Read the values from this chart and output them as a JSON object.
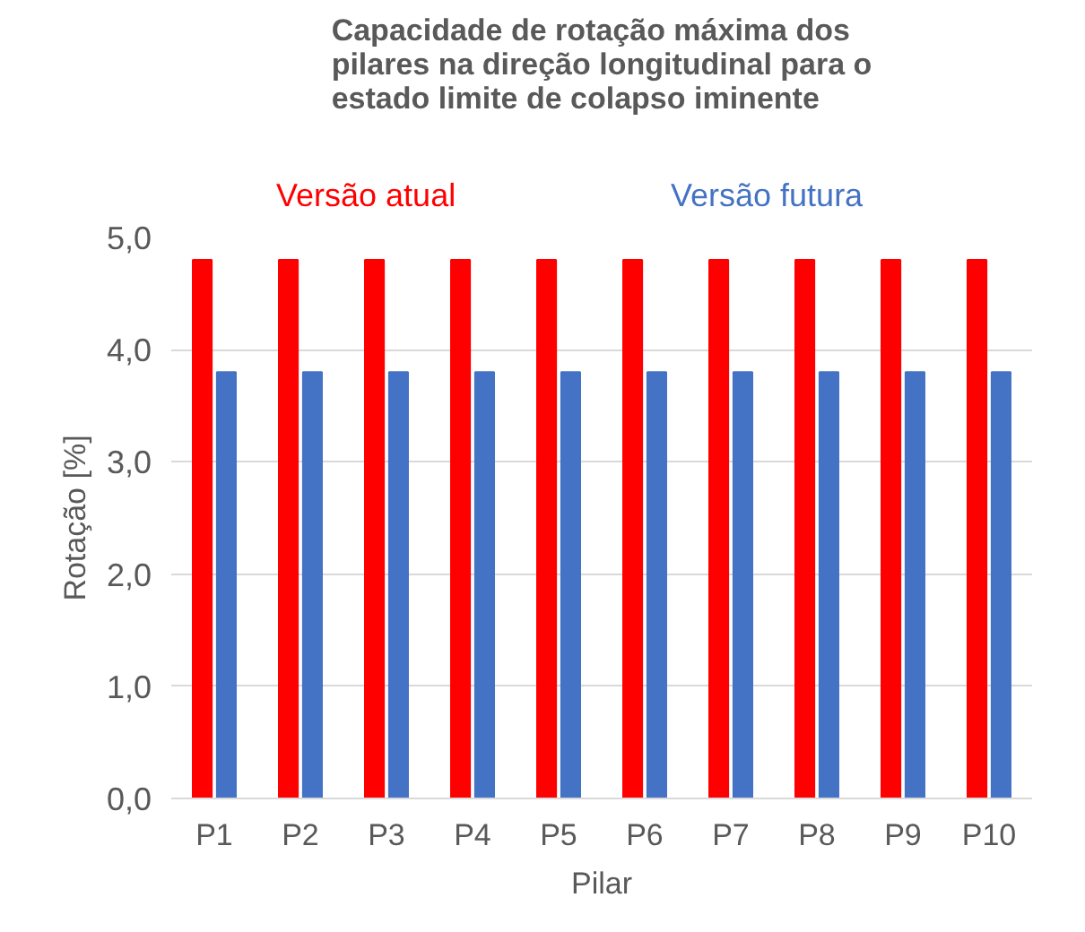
{
  "chart_data": {
    "type": "bar",
    "title": "Capacidade de rotação máxima dos\npilares na direção longitudinal para o\nestado limite de colapso iminente",
    "xlabel": "Pilar",
    "ylabel": "Rotação [%]",
    "categories": [
      "P1",
      "P2",
      "P3",
      "P4",
      "P5",
      "P6",
      "P7",
      "P8",
      "P9",
      "P10"
    ],
    "series": [
      {
        "name": "Versão atual",
        "color": "#ff0000",
        "values": [
          4.8,
          4.8,
          4.8,
          4.8,
          4.8,
          4.8,
          4.8,
          4.8,
          4.8,
          4.8
        ]
      },
      {
        "name": "Versão futura",
        "color": "#4472c4",
        "values": [
          3.8,
          3.8,
          3.8,
          3.8,
          3.8,
          3.8,
          3.8,
          3.8,
          3.8,
          3.8
        ]
      }
    ],
    "ylim": [
      0,
      5
    ],
    "yticks": [
      {
        "value": 0,
        "label": "0,0"
      },
      {
        "value": 1,
        "label": "1,0"
      },
      {
        "value": 2,
        "label": "2,0"
      },
      {
        "value": 3,
        "label": "3,0"
      },
      {
        "value": 4,
        "label": "4,0"
      },
      {
        "value": 5,
        "label": "5,0"
      }
    ],
    "grid": "y",
    "legend": "top"
  }
}
